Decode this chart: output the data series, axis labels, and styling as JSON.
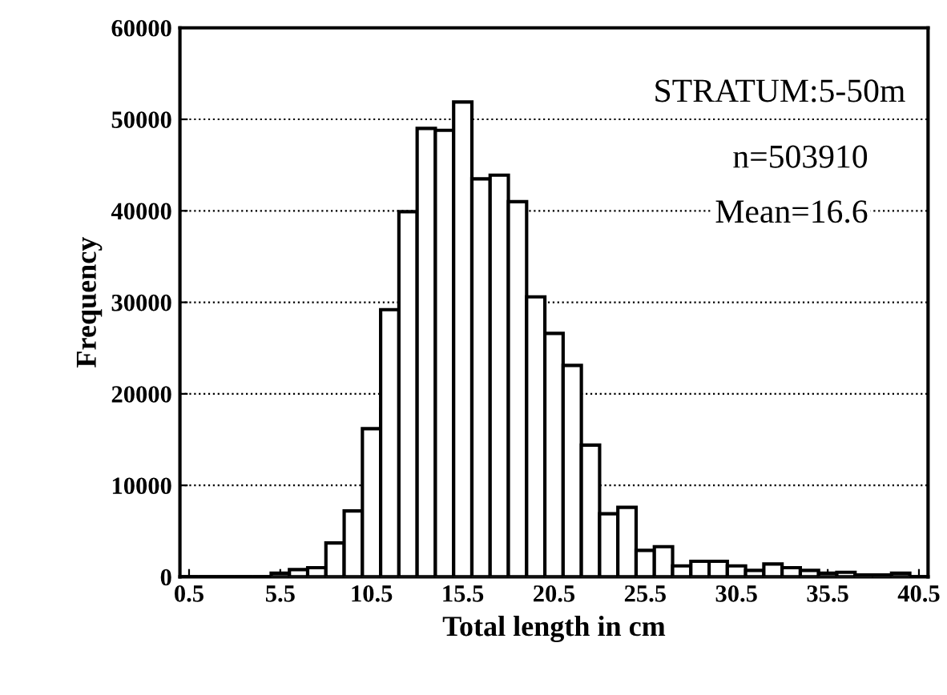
{
  "chart_data": {
    "type": "histogram",
    "xlabel": "Total length in cm",
    "ylabel": "Frequency",
    "annotations": [
      "STRATUM:5-50m",
      "n=503910",
      "Mean=16.6"
    ],
    "bins": [
      0,
      1,
      2,
      3,
      4,
      5,
      6,
      7,
      8,
      9,
      10,
      11,
      12,
      13,
      14,
      15,
      16,
      17,
      18,
      19,
      20,
      21,
      22,
      23,
      24,
      25,
      26,
      27,
      28,
      29,
      30,
      31,
      32,
      33,
      34,
      35,
      36,
      37,
      38,
      39,
      40,
      41
    ],
    "values": [
      0,
      0,
      0,
      0,
      0,
      400,
      800,
      1000,
      3700,
      7200,
      16200,
      29200,
      39900,
      49000,
      48800,
      51900,
      43500,
      43900,
      41000,
      30600,
      26600,
      23100,
      14400,
      6900,
      7600,
      2900,
      3300,
      1200,
      1700,
      1700,
      1200,
      700,
      1400,
      1000,
      700,
      400,
      500,
      200,
      200,
      400,
      0
    ],
    "color": "#ffffff",
    "xlim": [
      0,
      41
    ],
    "xticks": [
      0.5,
      5.5,
      10.5,
      15.5,
      20.5,
      25.5,
      30.5,
      35.5,
      40.5
    ],
    "ylim": [
      0,
      60000
    ],
    "yticks": [
      0,
      10000,
      20000,
      30000,
      40000,
      50000,
      60000
    ],
    "grid": "y"
  }
}
